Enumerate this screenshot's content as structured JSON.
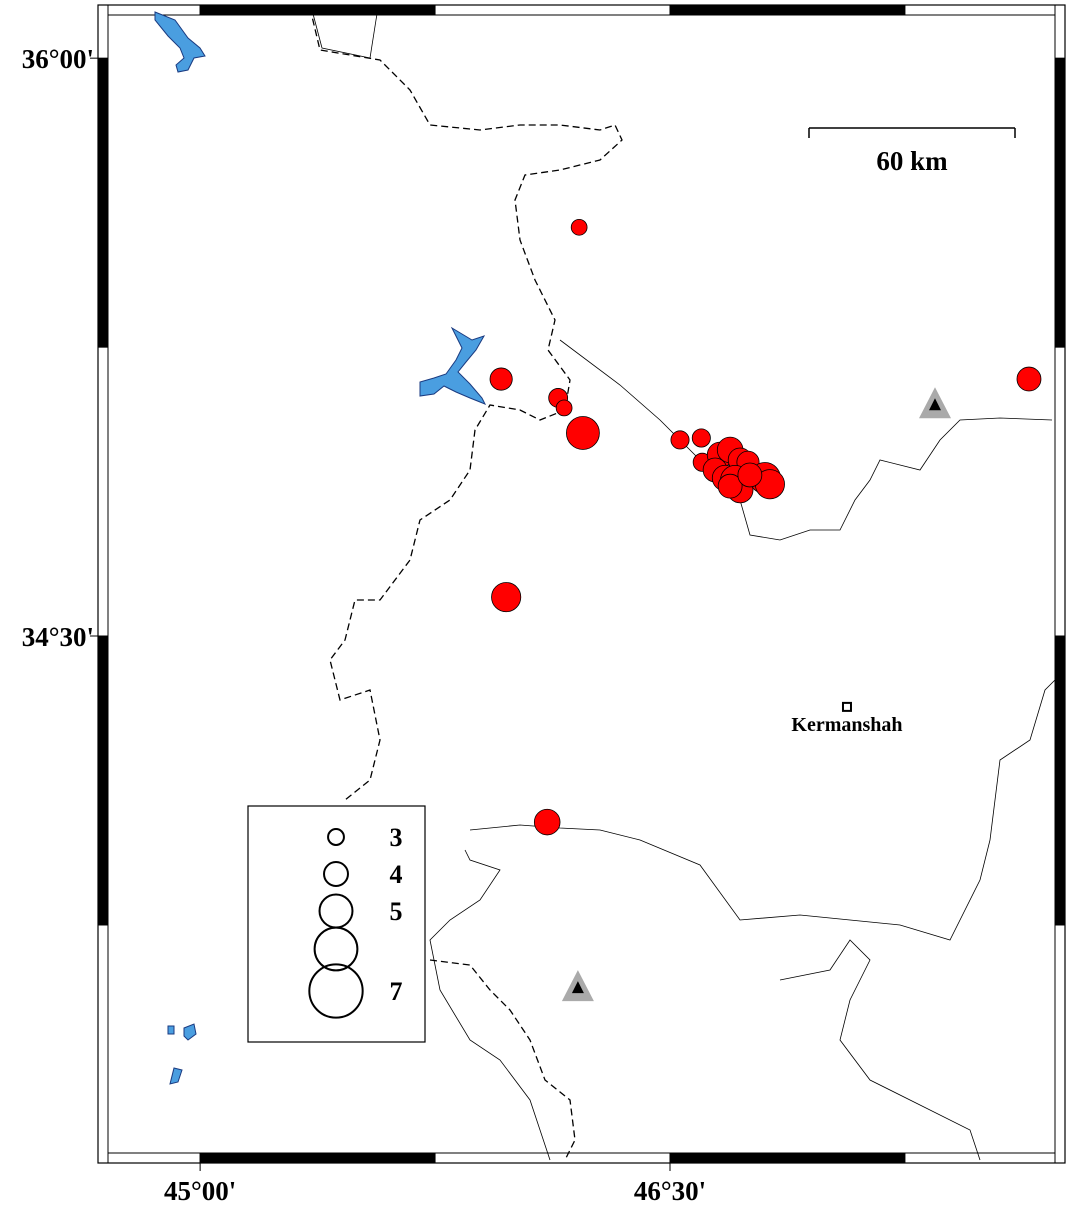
{
  "map": {
    "lonlim": [
      44.674,
      47.761
    ],
    "latlim": [
      33.132,
      36.138
    ],
    "lon_ticks": [
      {
        "value": 45,
        "label": "45°00'"
      },
      {
        "value": 46.5,
        "label": "46°30'"
      }
    ],
    "lat_ticks": [
      {
        "value": 36,
        "label": "36°00'"
      },
      {
        "value": 34.5,
        "label": "34°30'"
      }
    ],
    "scale_label": "60 km",
    "city": {
      "name": "Kermanshah",
      "lon": 47.065,
      "lat": 34.316
    },
    "stations": [
      {
        "lon": 47.346,
        "lat": 35.099
      },
      {
        "lon": 46.206,
        "lat": 33.586
      }
    ],
    "event_color": "#ff0000",
    "events": [
      {
        "lon": 46.21,
        "lat": 35.561,
        "mag": 3
      },
      {
        "lon": 45.961,
        "lat": 35.167,
        "mag": 3.8
      },
      {
        "lon": 46.143,
        "lat": 35.118,
        "mag": 3.4
      },
      {
        "lon": 46.162,
        "lat": 35.092,
        "mag": 3
      },
      {
        "lon": 46.222,
        "lat": 35.027,
        "mag": 5
      },
      {
        "lon": 45.977,
        "lat": 34.601,
        "mag": 4.6
      },
      {
        "lon": 46.108,
        "lat": 34.017,
        "mag": 4.2
      },
      {
        "lon": 47.646,
        "lat": 35.167,
        "mag": 4
      },
      {
        "lon": 46.532,
        "lat": 35.009,
        "mag": 3.3
      },
      {
        "lon": 46.6,
        "lat": 35.014,
        "mag": 3.3
      },
      {
        "lon": 46.603,
        "lat": 34.951,
        "mag": 3.3
      },
      {
        "lon": 46.66,
        "lat": 34.97,
        "mag": 4.2
      },
      {
        "lon": 46.692,
        "lat": 34.983,
        "mag": 4.2
      },
      {
        "lon": 46.724,
        "lat": 34.957,
        "mag": 4
      },
      {
        "lon": 46.749,
        "lat": 34.951,
        "mag": 3.8
      },
      {
        "lon": 46.644,
        "lat": 34.931,
        "mag": 4
      },
      {
        "lon": 46.676,
        "lat": 34.91,
        "mag": 4.2
      },
      {
        "lon": 46.708,
        "lat": 34.905,
        "mag": 4.6
      },
      {
        "lon": 46.724,
        "lat": 34.879,
        "mag": 4.2
      },
      {
        "lon": 46.803,
        "lat": 34.91,
        "mag": 4.8
      },
      {
        "lon": 46.819,
        "lat": 34.894,
        "mag": 4.6
      },
      {
        "lon": 46.692,
        "lat": 34.889,
        "mag": 4
      },
      {
        "lon": 46.755,
        "lat": 34.918,
        "mag": 4
      }
    ],
    "legend": {
      "magnitudes": [
        3,
        4,
        5,
        6,
        7
      ],
      "labels": [
        3,
        4,
        5,
        null,
        7
      ]
    }
  }
}
